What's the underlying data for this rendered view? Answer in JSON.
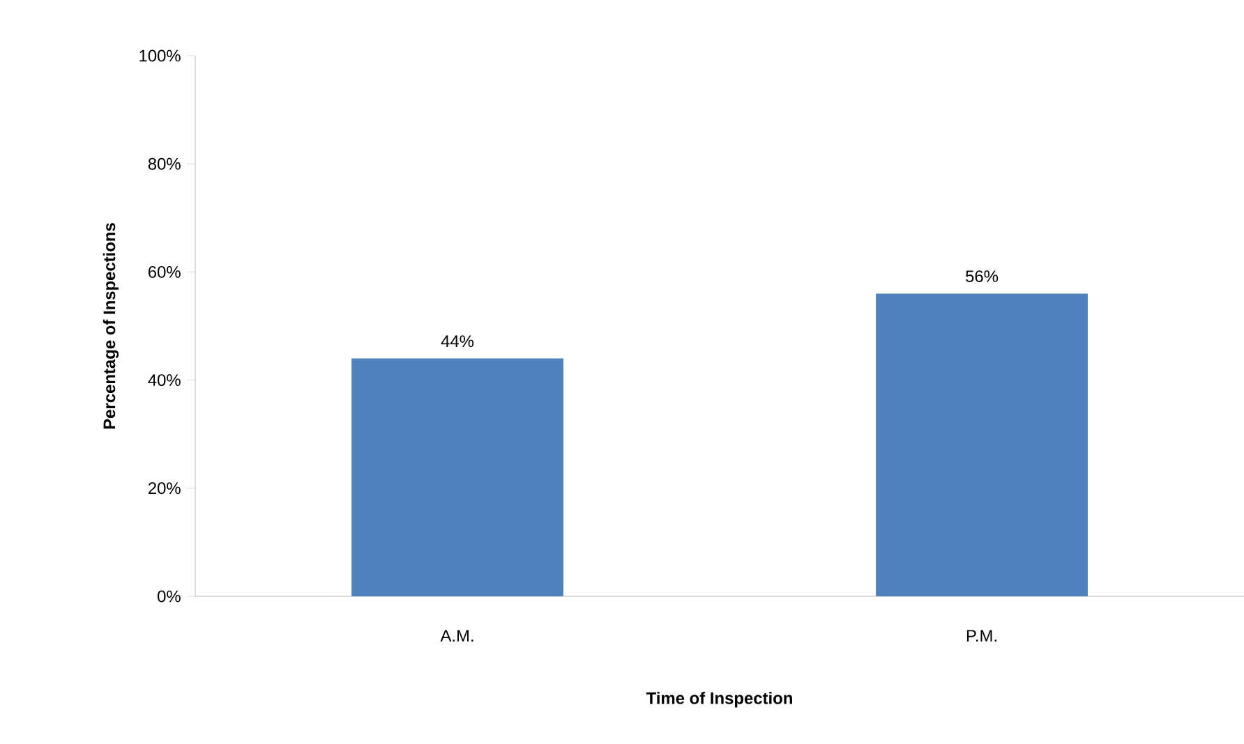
{
  "chart_data": {
    "type": "bar",
    "xlabel": "Time of Inspection",
    "ylabel": "Percentage of Inspections",
    "categories": [
      "A.M.",
      "P.M."
    ],
    "values": [
      44,
      56
    ],
    "value_labels": [
      "44%",
      "56%"
    ],
    "color": "#4f81bd",
    "ylim": [
      0,
      100
    ],
    "yticks": [
      {
        "value": 0,
        "label": "0%"
      },
      {
        "value": 20,
        "label": "20%"
      },
      {
        "value": 40,
        "label": "40%"
      },
      {
        "value": 60,
        "label": "60%"
      },
      {
        "value": 80,
        "label": "80%"
      },
      {
        "value": 100,
        "label": "100%"
      }
    ],
    "grid": false
  }
}
